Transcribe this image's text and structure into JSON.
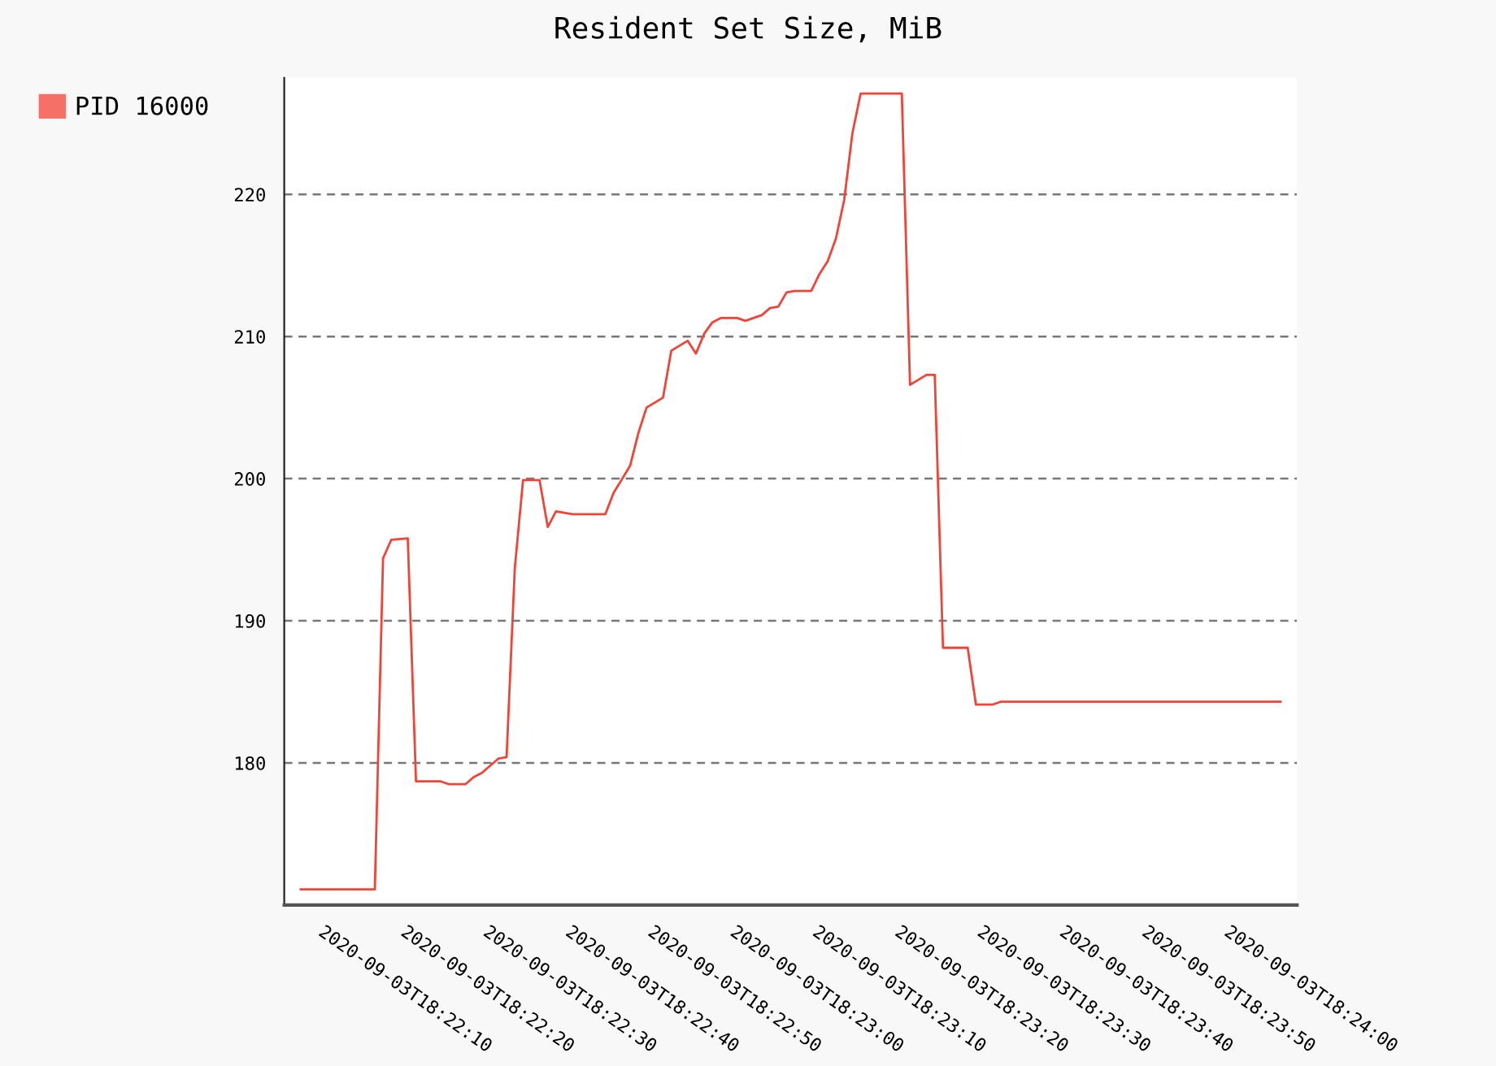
{
  "chart_data": {
    "type": "line",
    "title": "Resident Set Size, MiB",
    "x": [
      "2020-09-03T18:22:07",
      "2020-09-03T18:22:16",
      "2020-09-03T18:22:17",
      "2020-09-03T18:22:18",
      "2020-09-03T18:22:20",
      "2020-09-03T18:22:21",
      "2020-09-03T18:22:24",
      "2020-09-03T18:22:25",
      "2020-09-03T18:22:27",
      "2020-09-03T18:22:28",
      "2020-09-03T18:22:29",
      "2020-09-03T18:22:30",
      "2020-09-03T18:22:31",
      "2020-09-03T18:22:32",
      "2020-09-03T18:22:33",
      "2020-09-03T18:22:34",
      "2020-09-03T18:22:36",
      "2020-09-03T18:22:37",
      "2020-09-03T18:22:38",
      "2020-09-03T18:22:40",
      "2020-09-03T18:22:42",
      "2020-09-03T18:22:44",
      "2020-09-03T18:22:45",
      "2020-09-03T18:22:47",
      "2020-09-03T18:22:48",
      "2020-09-03T18:22:49",
      "2020-09-03T18:22:51",
      "2020-09-03T18:22:52",
      "2020-09-03T18:22:54",
      "2020-09-03T18:22:55",
      "2020-09-03T18:22:56",
      "2020-09-03T18:22:57",
      "2020-09-03T18:22:58",
      "2020-09-03T18:23:00",
      "2020-09-03T18:23:01",
      "2020-09-03T18:23:03",
      "2020-09-03T18:23:04",
      "2020-09-03T18:23:05",
      "2020-09-03T18:23:06",
      "2020-09-03T18:23:07",
      "2020-09-03T18:23:09",
      "2020-09-03T18:23:10",
      "2020-09-03T18:23:11",
      "2020-09-03T18:23:12",
      "2020-09-03T18:23:13",
      "2020-09-03T18:23:14",
      "2020-09-03T18:23:15",
      "2020-09-03T18:23:20",
      "2020-09-03T18:23:21",
      "2020-09-03T18:23:23",
      "2020-09-03T18:23:24",
      "2020-09-03T18:23:25",
      "2020-09-03T18:23:28",
      "2020-09-03T18:23:29",
      "2020-09-03T18:23:31",
      "2020-09-03T18:23:32",
      "2020-09-03T18:23:35",
      "2020-09-03T18:24:06"
    ],
    "series": [
      {
        "name": "PID 16000",
        "color": "#f44336",
        "values": [
          171.1,
          171.1,
          194.4,
          195.7,
          195.8,
          178.7,
          178.7,
          178.5,
          178.5,
          179.0,
          179.3,
          179.8,
          180.3,
          180.4,
          193.7,
          199.9,
          199.9,
          196.6,
          197.7,
          197.5,
          197.5,
          197.5,
          199.0,
          200.9,
          203.2,
          205.0,
          205.7,
          209.0,
          209.7,
          208.8,
          210.2,
          211.0,
          211.3,
          211.3,
          211.1,
          211.5,
          212.0,
          212.1,
          213.1,
          213.2,
          213.2,
          214.4,
          215.3,
          216.9,
          219.6,
          224.3,
          227.1,
          227.1,
          206.6,
          207.3,
          207.3,
          188.1,
          188.1,
          184.1,
          184.1,
          184.3,
          184.3,
          184.3
        ]
      }
    ],
    "xlim": [
      "2020-09-03T18:22:05",
      "2020-09-03T18:24:08"
    ],
    "xticks": [
      "2020-09-03T18:22:10",
      "2020-09-03T18:22:20",
      "2020-09-03T18:22:30",
      "2020-09-03T18:22:40",
      "2020-09-03T18:22:50",
      "2020-09-03T18:23:00",
      "2020-09-03T18:23:10",
      "2020-09-03T18:23:20",
      "2020-09-03T18:23:30",
      "2020-09-03T18:23:40",
      "2020-09-03T18:23:50",
      "2020-09-03T18:24:00"
    ],
    "ylim": [
      170,
      228.2
    ],
    "yticks": [
      180,
      190,
      200,
      210,
      220
    ],
    "grid": "y",
    "legend": "top left",
    "marker": "none",
    "line_style": "solid"
  }
}
